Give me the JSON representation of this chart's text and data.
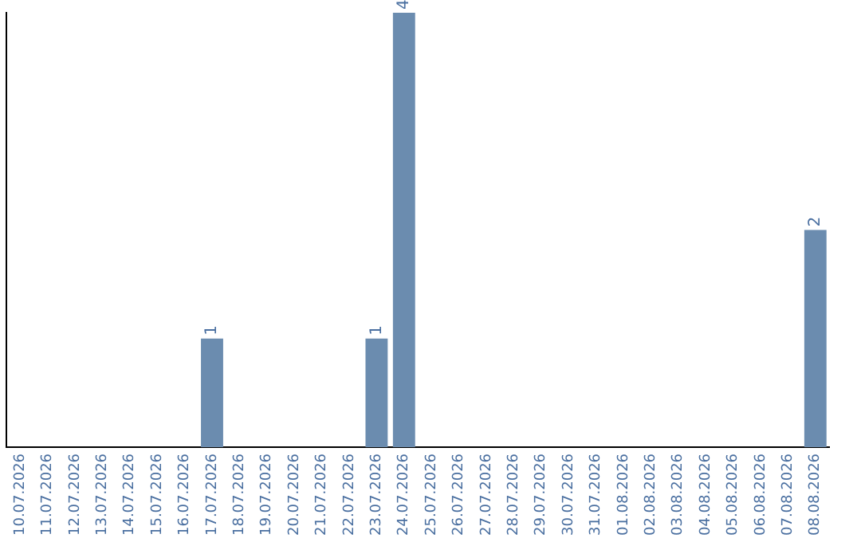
{
  "chart_data": {
    "type": "bar",
    "categories": [
      "10.07.2026",
      "11.07.2026",
      "12.07.2026",
      "13.07.2026",
      "14.07.2026",
      "15.07.2026",
      "16.07.2026",
      "17.07.2026",
      "18.07.2026",
      "19.07.2026",
      "20.07.2026",
      "21.07.2026",
      "22.07.2026",
      "23.07.2026",
      "24.07.2026",
      "25.07.2026",
      "26.07.2026",
      "27.07.2026",
      "28.07.2026",
      "29.07.2026",
      "30.07.2026",
      "31.07.2026",
      "01.08.2026",
      "02.08.2026",
      "03.08.2026",
      "04.08.2026",
      "05.08.2026",
      "06.08.2026",
      "07.08.2026",
      "08.08.2026"
    ],
    "values": [
      0,
      0,
      0,
      0,
      0,
      0,
      0,
      1,
      0,
      0,
      0,
      0,
      0,
      1,
      4,
      0,
      0,
      0,
      0,
      0,
      0,
      0,
      0,
      0,
      0,
      0,
      0,
      0,
      0,
      2
    ],
    "value_labels": [
      null,
      null,
      null,
      null,
      null,
      null,
      null,
      "1",
      null,
      null,
      null,
      null,
      null,
      "1",
      "4",
      null,
      null,
      null,
      null,
      null,
      null,
      null,
      null,
      null,
      null,
      null,
      null,
      null,
      null,
      "2"
    ],
    "color": "#6b8caf",
    "grid": false,
    "legend": false
  }
}
